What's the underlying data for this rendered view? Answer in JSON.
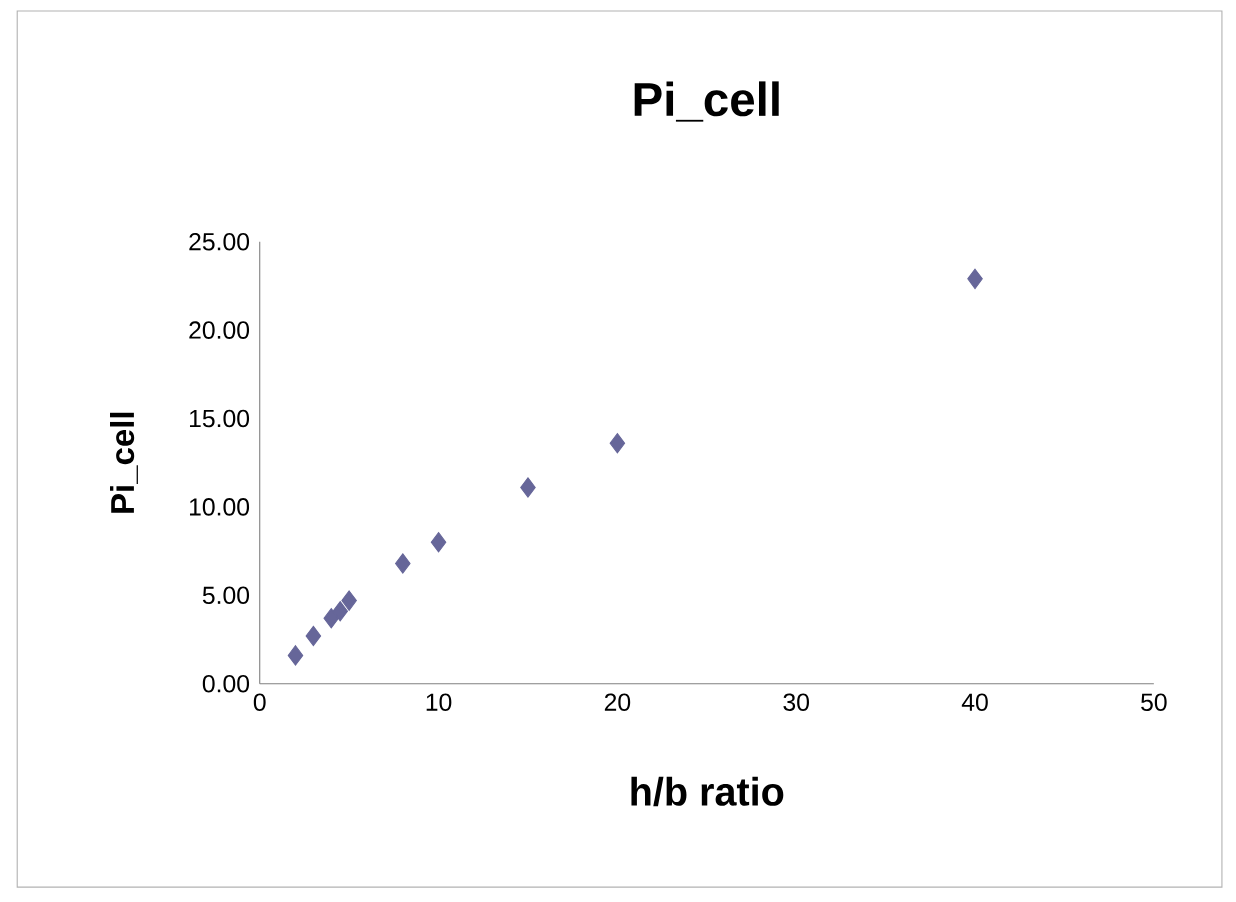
{
  "chart_data": {
    "type": "scatter",
    "title": "Pi_cell",
    "xlabel": "h/b ratio",
    "ylabel": "Pi_cell",
    "x": [
      2,
      3,
      4,
      4.5,
      5,
      8,
      10,
      15,
      20,
      40
    ],
    "values": [
      1.6,
      2.7,
      3.7,
      4.1,
      4.7,
      6.8,
      8.0,
      11.1,
      13.6,
      22.9
    ],
    "color": "#666699",
    "marker": "diamond",
    "grid": false,
    "xlim": [
      0,
      50
    ],
    "xticks": [
      0,
      10,
      20,
      30,
      40,
      50
    ],
    "ylim": [
      0,
      25
    ],
    "yticks": [
      {
        "value": 0,
        "label": "0.00"
      },
      {
        "value": 5,
        "label": "5.00"
      },
      {
        "value": 10,
        "label": "10.00"
      },
      {
        "value": 15,
        "label": "15.00"
      },
      {
        "value": 20,
        "label": "20.00"
      },
      {
        "value": 25,
        "label": "25.00"
      }
    ]
  }
}
